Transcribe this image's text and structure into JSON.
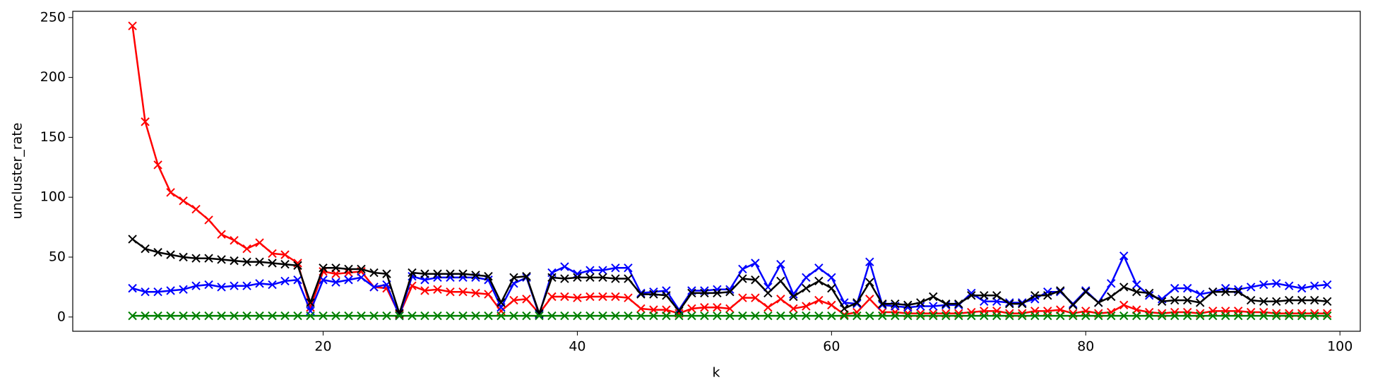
{
  "chart_data": {
    "type": "line",
    "x_label": "k",
    "y_label": "uncluster_rate",
    "x": [
      5,
      6,
      7,
      8,
      9,
      10,
      11,
      12,
      13,
      14,
      15,
      16,
      17,
      18,
      19,
      20,
      21,
      22,
      23,
      24,
      25,
      26,
      27,
      28,
      29,
      30,
      31,
      32,
      33,
      34,
      35,
      36,
      37,
      38,
      39,
      40,
      41,
      42,
      43,
      44,
      45,
      46,
      47,
      48,
      49,
      50,
      51,
      52,
      53,
      54,
      55,
      56,
      57,
      58,
      59,
      60,
      61,
      62,
      63,
      64,
      65,
      66,
      67,
      68,
      69,
      70,
      71,
      72,
      73,
      74,
      75,
      76,
      77,
      78,
      79,
      80,
      81,
      82,
      83,
      84,
      85,
      86,
      87,
      88,
      89,
      90,
      91,
      92,
      93,
      94,
      95,
      96,
      97,
      98,
      99
    ],
    "series": [
      {
        "color": "#ff0000",
        "values": [
          243,
          163,
          127,
          104,
          97,
          90,
          81,
          69,
          64,
          57,
          62,
          53,
          52,
          45,
          8,
          38,
          36,
          37,
          38,
          25,
          24,
          2,
          26,
          22,
          23,
          21,
          21,
          20,
          19,
          5,
          14,
          15,
          3,
          17,
          17,
          16,
          17,
          17,
          17,
          16,
          7,
          6,
          6,
          3,
          7,
          8,
          8,
          7,
          16,
          16,
          8,
          15,
          7,
          9,
          14,
          10,
          2,
          4,
          15,
          4,
          4,
          3,
          3,
          3,
          3,
          3,
          4,
          5,
          5,
          3,
          3,
          5,
          5,
          6,
          3,
          5,
          3,
          4,
          10,
          6,
          4,
          3,
          4,
          4,
          3,
          5,
          5,
          5,
          4,
          4,
          3,
          3,
          3,
          3,
          3
        ]
      },
      {
        "color": "#0000ff",
        "values": [
          24,
          21,
          21,
          22,
          23,
          26,
          27,
          25,
          26,
          26,
          28,
          27,
          30,
          31,
          5,
          31,
          29,
          31,
          33,
          25,
          27,
          1,
          34,
          31,
          33,
          33,
          33,
          33,
          31,
          8,
          28,
          33,
          2,
          37,
          42,
          36,
          39,
          39,
          41,
          41,
          20,
          21,
          22,
          6,
          22,
          22,
          23,
          23,
          40,
          45,
          25,
          44,
          19,
          33,
          41,
          33,
          12,
          11,
          46,
          10,
          9,
          8,
          9,
          9,
          10,
          10,
          20,
          13,
          13,
          12,
          12,
          15,
          21,
          21,
          11,
          22,
          12,
          28,
          51,
          27,
          18,
          15,
          24,
          24,
          19,
          21,
          24,
          23,
          25,
          27,
          28,
          26,
          24,
          26,
          27
        ]
      },
      {
        "color": "#000000",
        "values": [
          65,
          57,
          54,
          52,
          50,
          49,
          49,
          48,
          47,
          46,
          46,
          45,
          44,
          43,
          12,
          41,
          41,
          40,
          40,
          37,
          36,
          3,
          37,
          36,
          36,
          36,
          36,
          35,
          34,
          12,
          33,
          34,
          3,
          33,
          32,
          33,
          33,
          33,
          32,
          32,
          19,
          19,
          18,
          5,
          20,
          20,
          20,
          21,
          32,
          31,
          20,
          30,
          17,
          24,
          30,
          24,
          7,
          12,
          29,
          11,
          11,
          10,
          12,
          17,
          11,
          11,
          18,
          18,
          18,
          11,
          11,
          18,
          18,
          22,
          10,
          21,
          12,
          17,
          25,
          21,
          20,
          13,
          14,
          14,
          12,
          21,
          21,
          21,
          14,
          13,
          13,
          14,
          14,
          14,
          13
        ]
      },
      {
        "color": "#008000",
        "values": [
          1,
          1,
          1,
          1,
          1,
          1,
          1,
          1,
          1,
          1,
          1,
          1,
          1,
          1,
          1,
          1,
          1,
          1,
          1,
          1,
          1,
          1,
          1,
          1,
          1,
          1,
          1,
          1,
          1,
          1,
          1,
          1,
          1,
          1,
          1,
          1,
          1,
          1,
          1,
          1,
          1,
          1,
          1,
          1,
          1,
          1,
          1,
          1,
          1,
          1,
          1,
          1,
          1,
          1,
          1,
          1,
          1,
          1,
          1,
          1,
          1,
          1,
          1,
          1,
          1,
          1,
          1,
          1,
          1,
          1,
          1,
          1,
          1,
          1,
          1,
          1,
          1,
          1,
          1,
          1,
          1,
          1,
          1,
          1,
          1,
          1,
          1,
          1,
          1,
          1,
          1,
          1,
          1,
          1,
          1
        ]
      }
    ],
    "xlim": [
      0.3,
      101.6
    ],
    "ylim": [
      -11.9,
      255.2
    ],
    "xticks": [
      20,
      40,
      60,
      80,
      100
    ],
    "yticks": [
      0,
      50,
      100,
      150,
      200,
      250
    ]
  }
}
